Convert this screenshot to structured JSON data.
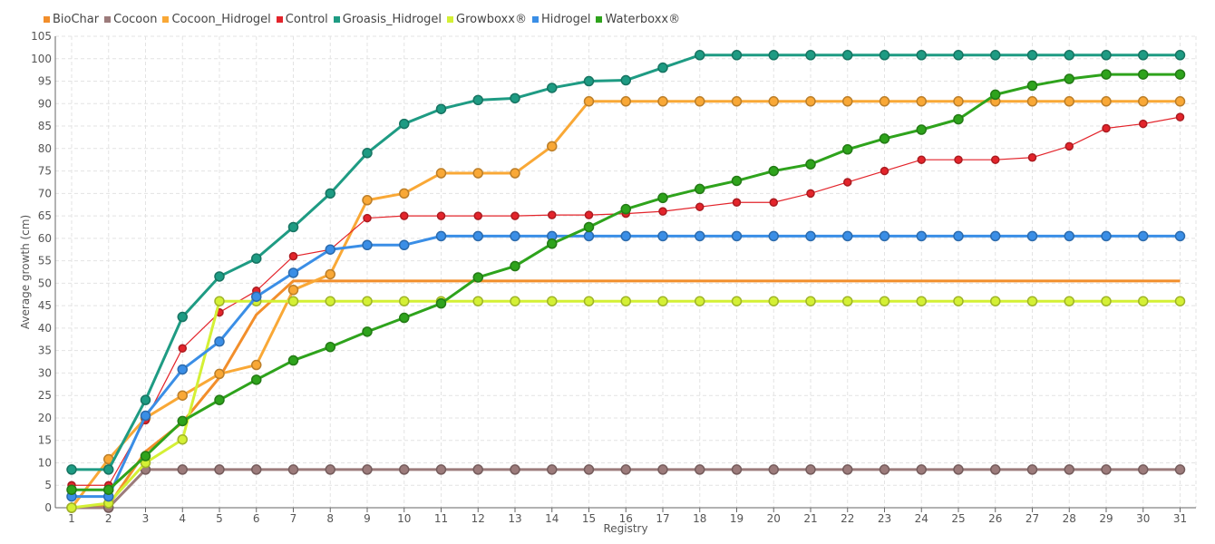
{
  "chart_data": {
    "type": "line",
    "xlabel": "Registry",
    "ylabel": "Average growth (cm)",
    "ylim": [
      0,
      105
    ],
    "ytick_step": 5,
    "grid": true,
    "legend_position": "top-left",
    "x": [
      1,
      2,
      3,
      4,
      5,
      6,
      7,
      8,
      9,
      10,
      11,
      12,
      13,
      14,
      15,
      16,
      17,
      18,
      19,
      20,
      21,
      22,
      23,
      24,
      25,
      26,
      27,
      28,
      29,
      30,
      31
    ],
    "series": [
      {
        "name": "BioChar",
        "color": "#f28e2b",
        "marker": false,
        "values": [
          0,
          0.5,
          12.5,
          19,
          29,
          43,
          50.5,
          50.5,
          50.5,
          50.5,
          50.5,
          50.5,
          50.5,
          50.5,
          50.5,
          50.5,
          50.5,
          50.5,
          50.5,
          50.5,
          50.5,
          50.5,
          50.5,
          50.5,
          50.5,
          50.5,
          50.5,
          50.5,
          50.5,
          50.5,
          50.5
        ]
      },
      {
        "name": "Cocoon",
        "color": "#9c7b7b",
        "marker": true,
        "values": [
          0,
          0,
          8.5,
          8.5,
          8.5,
          8.5,
          8.5,
          8.5,
          8.5,
          8.5,
          8.5,
          8.5,
          8.5,
          8.5,
          8.5,
          8.5,
          8.5,
          8.5,
          8.5,
          8.5,
          8.5,
          8.5,
          8.5,
          8.5,
          8.5,
          8.5,
          8.5,
          8.5,
          8.5,
          8.5,
          8.5
        ]
      },
      {
        "name": "Cocoon_Hidrogel",
        "color": "#f9a836",
        "marker": true,
        "values": [
          0,
          10.8,
          20,
          25,
          29.8,
          31.8,
          48.5,
          52,
          68.5,
          70,
          74.5,
          74.5,
          74.5,
          80.5,
          90.5,
          90.5,
          90.5,
          90.5,
          90.5,
          90.5,
          90.5,
          90.5,
          90.5,
          90.5,
          90.5,
          90.5,
          90.5,
          90.5,
          90.5,
          90.5,
          90.5
        ]
      },
      {
        "name": "Control",
        "color": "#e3242b",
        "marker": true,
        "values": [
          5,
          5,
          19.5,
          35.5,
          43.5,
          48.3,
          56,
          57.5,
          64.5,
          65,
          65,
          65,
          65,
          65.2,
          65.2,
          65.5,
          66,
          67,
          68,
          68,
          70,
          72.5,
          75,
          77.5,
          77.5,
          77.5,
          78,
          80.5,
          84.5,
          85.5,
          87
        ]
      },
      {
        "name": "Groasis_Hidrogel",
        "color": "#1e9b83",
        "marker": true,
        "values": [
          8.5,
          8.5,
          24,
          42.5,
          51.5,
          55.5,
          62.5,
          70,
          79,
          85.5,
          88.8,
          90.8,
          91.2,
          93.5,
          95,
          95.2,
          98,
          100.8,
          100.8,
          100.8,
          100.8,
          100.8,
          100.8,
          100.8,
          100.8,
          100.8,
          100.8,
          100.8,
          100.8,
          100.8,
          100.8
        ]
      },
      {
        "name": "Growboxx®",
        "color": "#d4f035",
        "marker": true,
        "values": [
          0,
          1,
          10,
          15.2,
          46,
          46,
          46,
          46,
          46,
          46,
          46,
          46,
          46,
          46,
          46,
          46,
          46,
          46,
          46,
          46,
          46,
          46,
          46,
          46,
          46,
          46,
          46,
          46,
          46,
          46,
          46
        ]
      },
      {
        "name": "Hidrogel",
        "color": "#3a8ee6",
        "marker": true,
        "values": [
          2.5,
          2.5,
          20.5,
          30.8,
          37,
          47,
          52.3,
          57.5,
          58.5,
          58.5,
          60.5,
          60.5,
          60.5,
          60.5,
          60.5,
          60.5,
          60.5,
          60.5,
          60.5,
          60.5,
          60.5,
          60.5,
          60.5,
          60.5,
          60.5,
          60.5,
          60.5,
          60.5,
          60.5,
          60.5,
          60.5
        ]
      },
      {
        "name": "Waterboxx®",
        "color": "#2ea31c",
        "marker": true,
        "values": [
          4,
          4,
          11.5,
          19.3,
          24,
          28.5,
          32.8,
          35.8,
          39.2,
          42.3,
          45.5,
          51.3,
          53.8,
          58.8,
          62.5,
          66.5,
          69,
          71,
          72.8,
          75,
          76.5,
          79.8,
          82.2,
          84.2,
          86.5,
          92,
          94,
          95.5,
          96.5,
          96.5,
          96.5
        ]
      }
    ]
  }
}
